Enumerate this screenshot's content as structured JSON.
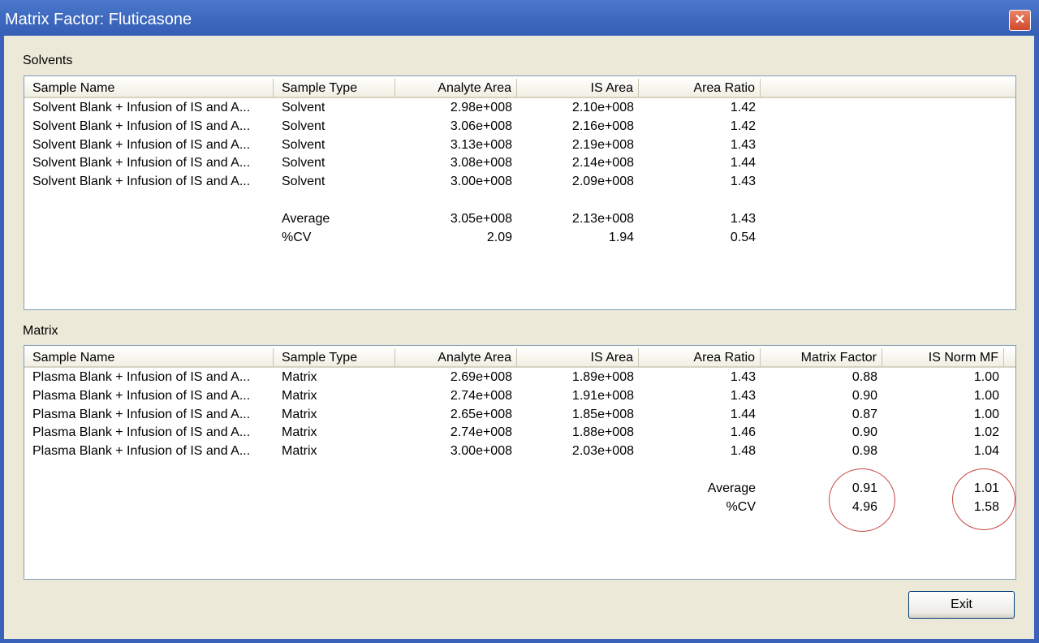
{
  "window": {
    "title": "Matrix Factor: Fluticasone",
    "close_icon": "close-x"
  },
  "solvents": {
    "label": "Solvents",
    "columns": [
      "Sample Name",
      "Sample Type",
      "Analyte Area",
      "IS Area",
      "Area Ratio"
    ],
    "rows": [
      [
        "Solvent Blank + Infusion of IS and A...",
        "Solvent",
        "2.98e+008",
        "2.10e+008",
        "1.42"
      ],
      [
        "Solvent Blank + Infusion of IS and A...",
        "Solvent",
        "3.06e+008",
        "2.16e+008",
        "1.42"
      ],
      [
        "Solvent Blank + Infusion of IS and A...",
        "Solvent",
        "3.13e+008",
        "2.19e+008",
        "1.43"
      ],
      [
        "Solvent Blank + Infusion of IS and A...",
        "Solvent",
        "3.08e+008",
        "2.14e+008",
        "1.44"
      ],
      [
        "Solvent Blank + Infusion of IS and A...",
        "Solvent",
        "3.00e+008",
        "2.09e+008",
        "1.43"
      ]
    ],
    "summary": [
      [
        "Average",
        "3.05e+008",
        "2.13e+008",
        "1.43"
      ],
      [
        "%CV",
        "2.09",
        "1.94",
        "0.54"
      ]
    ]
  },
  "matrix": {
    "label": "Matrix",
    "columns": [
      "Sample Name",
      "Sample Type",
      "Analyte Area",
      "IS Area",
      "Area Ratio",
      "Matrix Factor",
      "IS Norm MF"
    ],
    "rows": [
      [
        "Plasma Blank + Infusion of IS and A...",
        "Matrix",
        "2.69e+008",
        "1.89e+008",
        "1.43",
        "0.88",
        "1.00"
      ],
      [
        "Plasma Blank + Infusion of IS and A...",
        "Matrix",
        "2.74e+008",
        "1.91e+008",
        "1.43",
        "0.90",
        "1.00"
      ],
      [
        "Plasma Blank + Infusion of IS and A...",
        "Matrix",
        "2.65e+008",
        "1.85e+008",
        "1.44",
        "0.87",
        "1.00"
      ],
      [
        "Plasma Blank + Infusion of IS and A...",
        "Matrix",
        "2.74e+008",
        "1.88e+008",
        "1.46",
        "0.90",
        "1.02"
      ],
      [
        "Plasma Blank + Infusion of IS and A...",
        "Matrix",
        "3.00e+008",
        "2.03e+008",
        "1.48",
        "0.98",
        "1.04"
      ]
    ],
    "summary": [
      [
        "Average",
        "0.91",
        "1.01"
      ],
      [
        "%CV",
        "4.96",
        "1.58"
      ]
    ],
    "highlight_color": "#c8463f"
  },
  "exit_label": "Exit"
}
